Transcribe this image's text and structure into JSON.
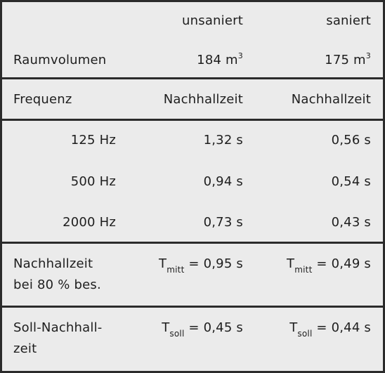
{
  "table": {
    "header": [
      "unsaniert",
      "saniert"
    ],
    "volume": {
      "label": "Raumvolumen",
      "cells": [
        {
          "value": "184 m",
          "sup": "3"
        },
        {
          "value": "175 m",
          "sup": "3"
        }
      ]
    },
    "columns": [
      "Frequenz",
      "Nachhallzeit",
      "Nachhallzeit"
    ],
    "rows": [
      [
        "125 Hz",
        "1,32 s",
        "0,56 s"
      ],
      [
        "500 Hz",
        "0,94 s",
        "0,54 s"
      ],
      [
        "2000 Hz",
        "0,73 s",
        "0,43 s"
      ]
    ],
    "mean": {
      "label": [
        "Nachhallzeit",
        "bei 80 % bes."
      ],
      "cells": [
        {
          "symbol": "T",
          "sub": "mitt",
          "value": " = 0,95 s"
        },
        {
          "symbol": "T",
          "sub": "mitt",
          "value": " = 0,49 s"
        }
      ]
    },
    "target": {
      "label": [
        "Soll-Nachhall-",
        "zeit"
      ],
      "cells": [
        {
          "symbol": "T",
          "sub": "soll",
          "value": " = 0,45 s"
        },
        {
          "symbol": "T",
          "sub": "soll",
          "value": " = 0,44 s"
        }
      ]
    }
  }
}
